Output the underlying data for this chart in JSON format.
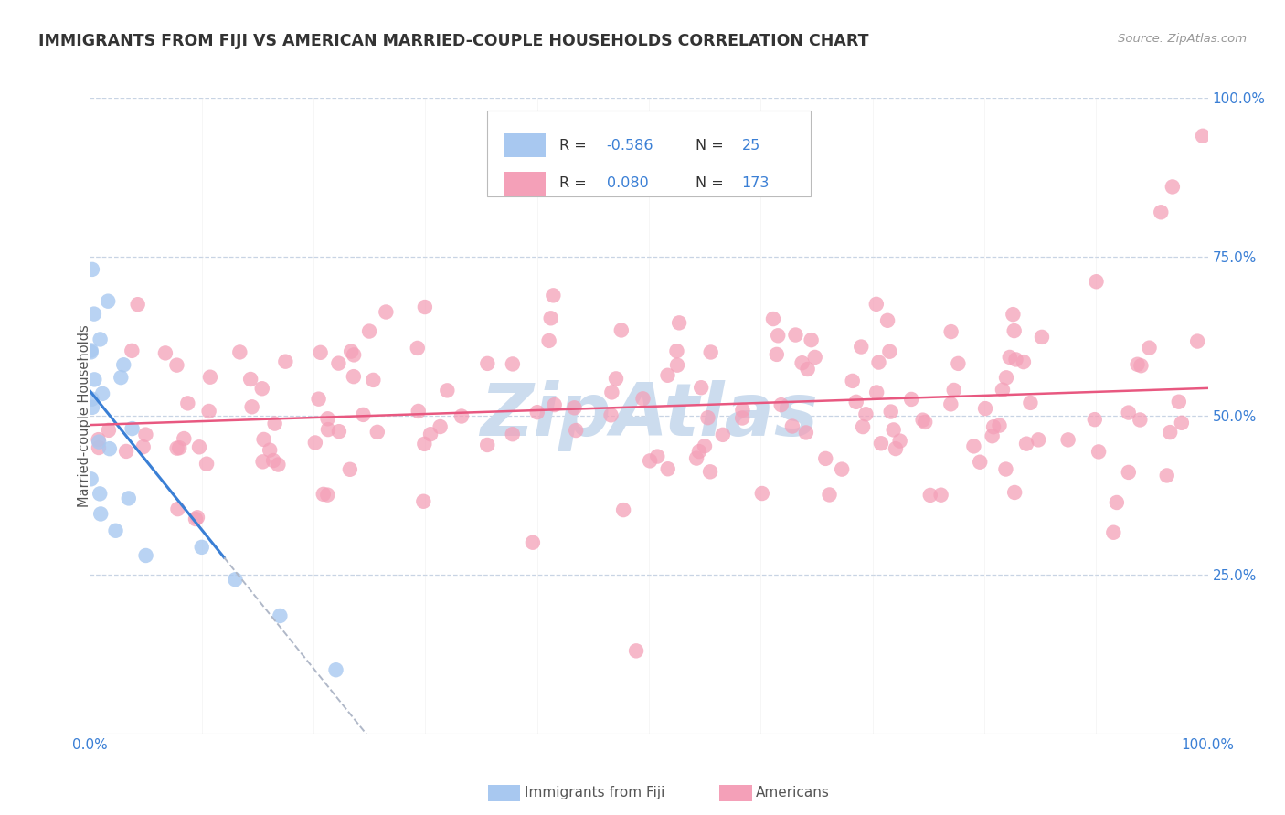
{
  "title": "IMMIGRANTS FROM FIJI VS AMERICAN MARRIED-COUPLE HOUSEHOLDS CORRELATION CHART",
  "source": "Source: ZipAtlas.com",
  "ylabel": "Married-couple Households",
  "legend_fiji_R": "-0.586",
  "legend_fiji_N": "25",
  "legend_amer_R": "0.080",
  "legend_amer_N": "173",
  "fiji_dot_color": "#a8c8f0",
  "amer_dot_color": "#f4a0b8",
  "fiji_line_color": "#3a7fd5",
  "amer_line_color": "#e85880",
  "dashed_line_color": "#b0b8c8",
  "watermark_color": "#ccdcee",
  "background_color": "#ffffff",
  "grid_color": "#c8d4e4",
  "legend_text_color": "#333333",
  "legend_num_color": "#3a7fd5",
  "source_color": "#999999",
  "title_color": "#333333",
  "axis_num_color": "#3a7fd5",
  "bottom_legend_fiji_color": "#a8c8f0",
  "bottom_legend_amer_color": "#f4a0b8"
}
